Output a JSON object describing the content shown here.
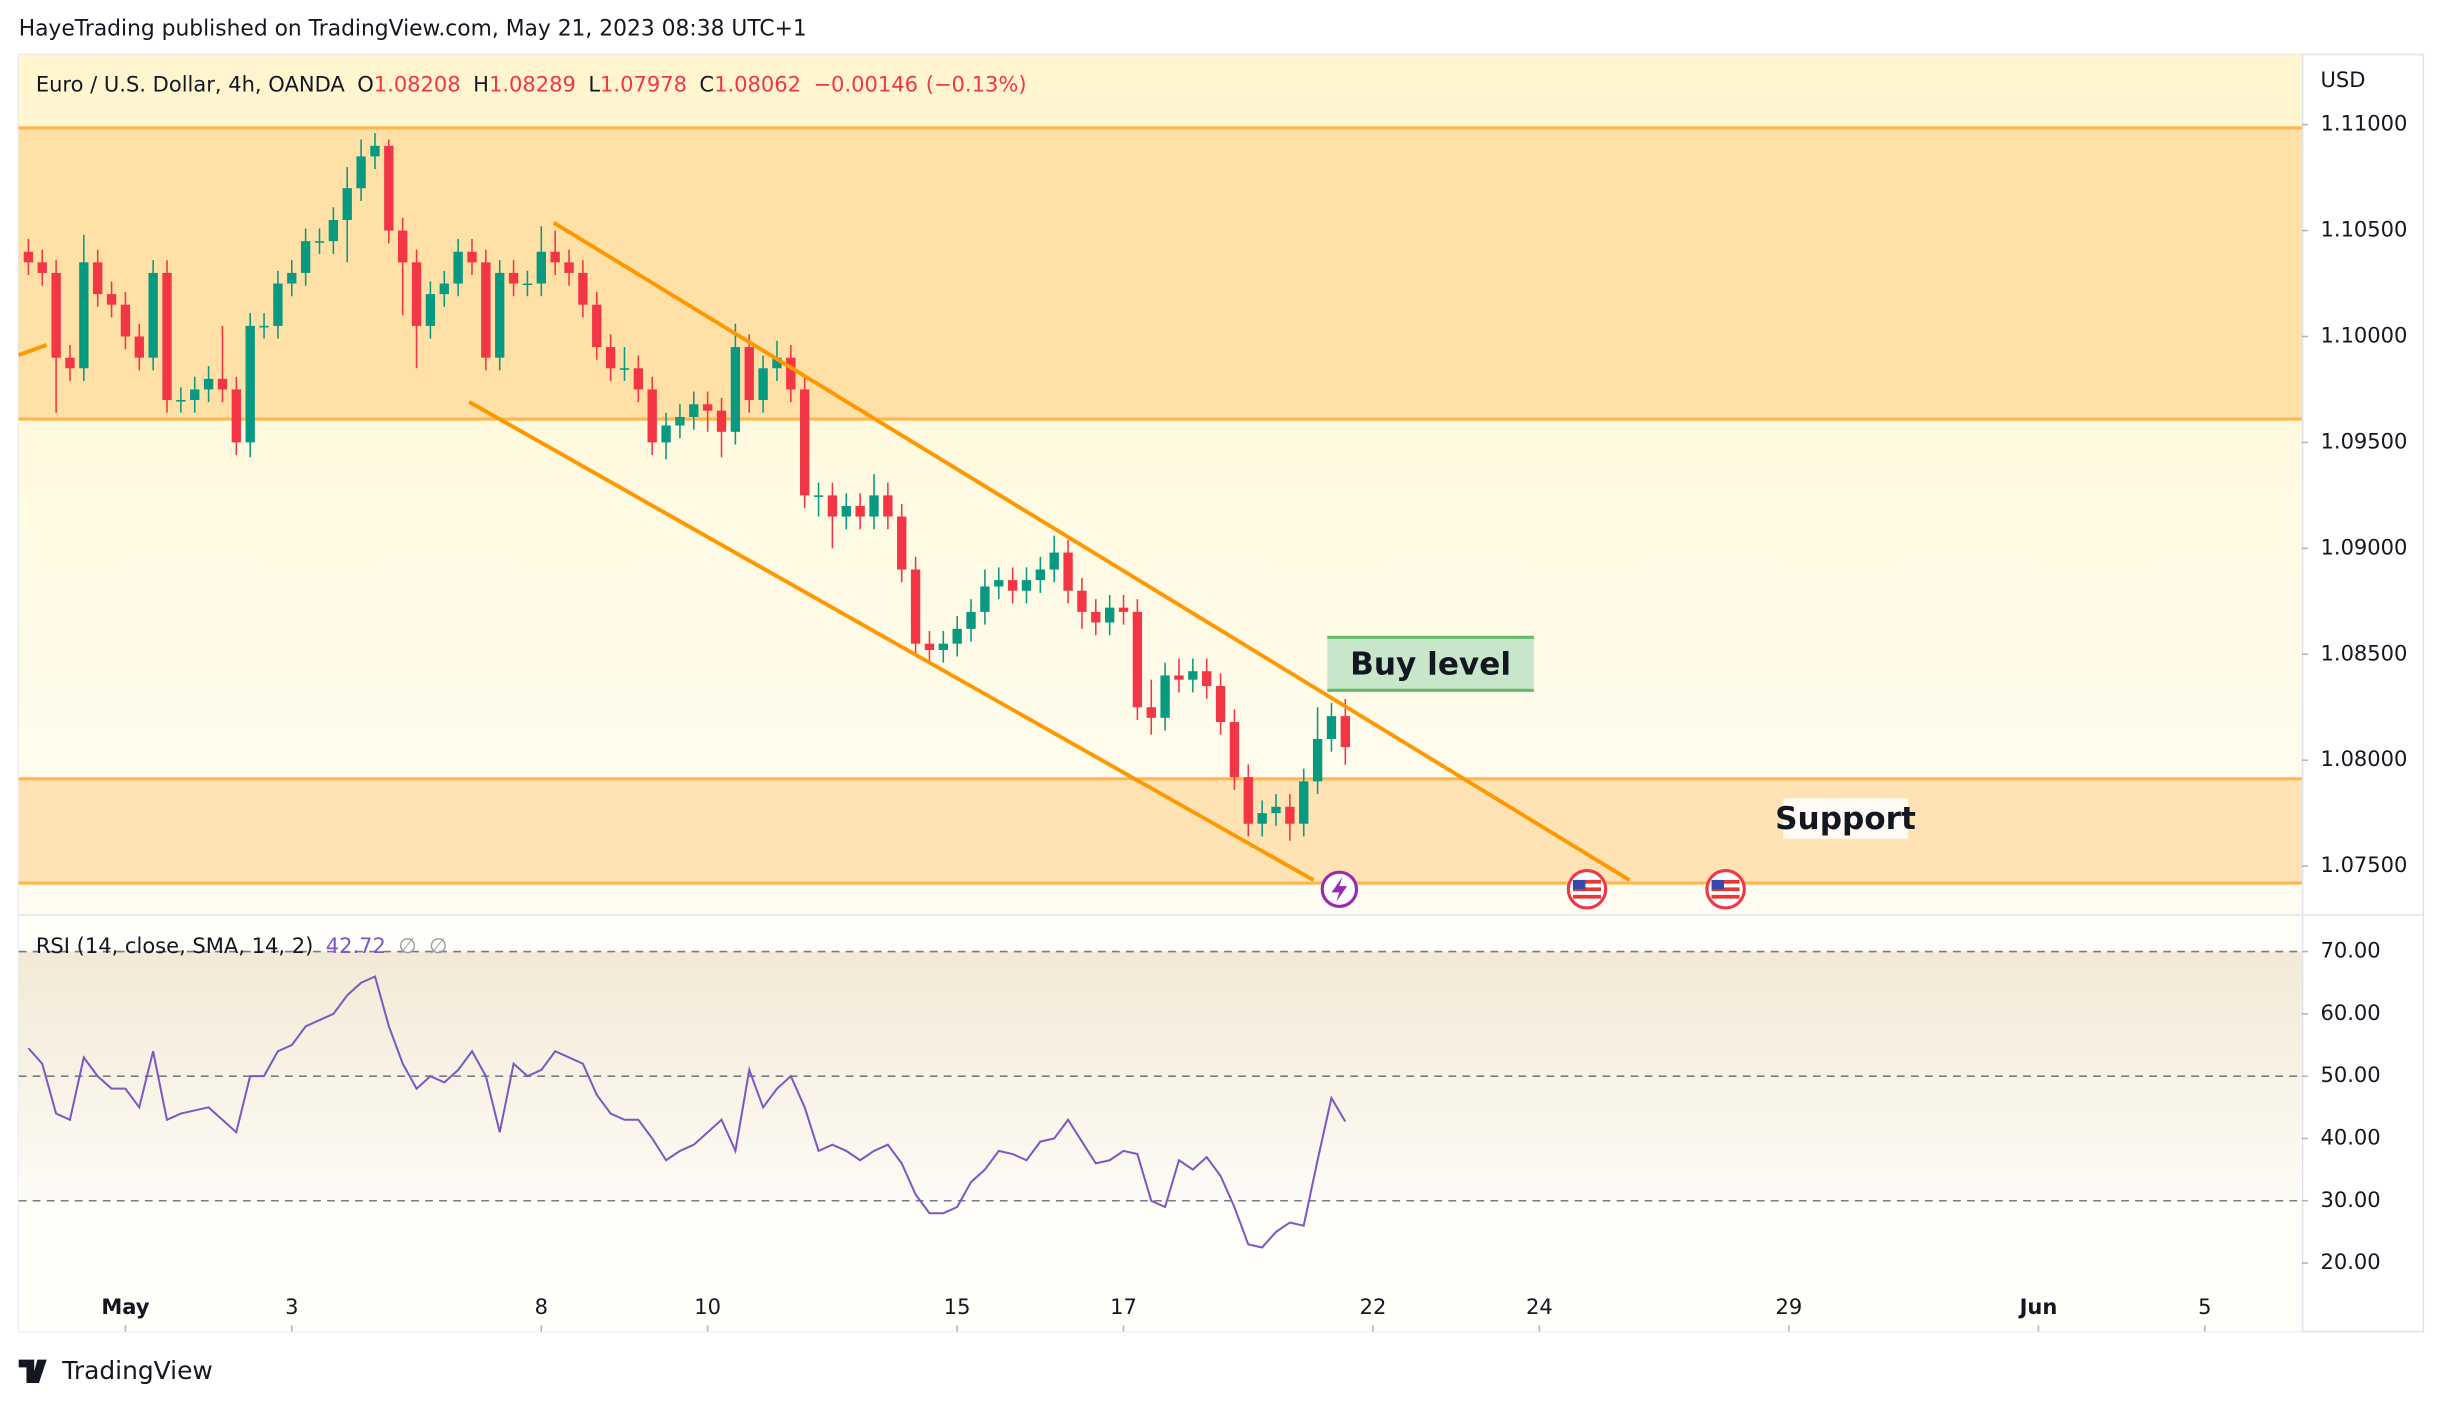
{
  "header": {
    "publisher": "HayeTrading published on TradingView.com, May 21, 2023 08:38 UTC+1",
    "footer": "TradingView"
  },
  "chart_data": [
    {
      "type": "candlestick",
      "title": "Euro / U.S. Dollar, 4h, OANDA",
      "ohlc_labels": [
        "O",
        "H",
        "L",
        "C"
      ],
      "change": {
        "value": -0.00146,
        "label": "−0.00146"
      },
      "change_pct": {
        "value": -0.13,
        "label": "(−0.13%)"
      },
      "currency": "USD",
      "up_color": "#089981",
      "down_color": "#f23645",
      "open": [
        1.104,
        1.1035,
        1.103,
        1.099,
        1.0985,
        1.1035,
        1.102,
        1.1015,
        1.1,
        1.099,
        1.103,
        1.097,
        1.097,
        1.0975,
        1.098,
        1.0975,
        1.095,
        1.1005,
        1.1005,
        1.1025,
        1.103,
        1.1045,
        1.1045,
        1.1055,
        1.107,
        1.1085,
        1.109,
        1.105,
        1.1035,
        1.1005,
        1.102,
        1.1025,
        1.104,
        1.1035,
        1.099,
        1.103,
        1.1025,
        1.1025,
        1.104,
        1.1035,
        1.103,
        1.1015,
        1.0995,
        1.0985,
        1.0985,
        1.0975,
        1.095,
        1.0958,
        1.0962,
        1.0968,
        1.0965,
        1.0955,
        1.0995,
        1.097,
        1.0985,
        1.099,
        1.0975,
        1.0925,
        1.0925,
        1.0915,
        1.092,
        1.0915,
        1.0925,
        1.0915,
        1.089,
        1.0855,
        1.0852,
        1.0855,
        1.0862,
        1.087,
        1.0882,
        1.0885,
        1.088,
        1.0885,
        1.089,
        1.0898,
        1.088,
        1.087,
        1.0865,
        1.0872,
        1.087,
        1.0825,
        1.082,
        1.084,
        1.0838,
        1.0842,
        1.0835,
        1.0818,
        1.0792,
        1.077,
        1.0775,
        1.0778,
        1.077,
        1.079,
        1.081,
        1.08208
      ],
      "high": [
        1.1046,
        1.1041,
        1.1036,
        1.0996,
        1.1048,
        1.1041,
        1.1026,
        1.1021,
        1.1006,
        1.1036,
        1.1036,
        1.0976,
        1.0981,
        1.0986,
        1.1005,
        1.0981,
        1.1011,
        1.1011,
        1.1031,
        1.1036,
        1.1051,
        1.1051,
        1.1061,
        1.108,
        1.1093,
        1.1096,
        1.1093,
        1.1056,
        1.1041,
        1.1026,
        1.1031,
        1.1046,
        1.1046,
        1.1041,
        1.1036,
        1.1036,
        1.1031,
        1.1052,
        1.105,
        1.1041,
        1.1036,
        1.1021,
        1.1001,
        1.0995,
        1.0991,
        1.0981,
        1.0964,
        1.0968,
        1.0974,
        1.0974,
        1.0971,
        1.1006,
        1.1001,
        1.0991,
        1.0998,
        1.0996,
        1.0981,
        1.0931,
        1.0931,
        1.0926,
        1.0926,
        1.0935,
        1.0931,
        1.0921,
        1.0896,
        1.0861,
        1.0861,
        1.0868,
        1.0876,
        1.089,
        1.0891,
        1.0891,
        1.0891,
        1.0896,
        1.0906,
        1.0904,
        1.0886,
        1.0876,
        1.0878,
        1.0878,
        1.0876,
        1.0838,
        1.0846,
        1.0848,
        1.0848,
        1.0848,
        1.0841,
        1.0824,
        1.0798,
        1.0781,
        1.0784,
        1.0784,
        1.0796,
        1.0825,
        1.0827,
        1.08289
      ],
      "low": [
        1.1029,
        1.1024,
        1.0964,
        1.0979,
        1.0979,
        1.1014,
        1.1009,
        1.0994,
        1.0984,
        1.0984,
        1.0964,
        1.0964,
        1.0964,
        1.0969,
        1.0969,
        1.0944,
        1.0943,
        1.0999,
        1.0999,
        1.1019,
        1.1024,
        1.1039,
        1.1039,
        1.1035,
        1.1064,
        1.1079,
        1.1044,
        1.101,
        1.0985,
        1.0999,
        1.1014,
        1.1019,
        1.1029,
        1.0984,
        1.0984,
        1.1019,
        1.1019,
        1.1019,
        1.1029,
        1.1024,
        1.1009,
        1.0989,
        1.0979,
        1.0979,
        1.0969,
        1.0944,
        1.0942,
        1.0952,
        1.0956,
        1.0955,
        1.0943,
        1.0949,
        1.0964,
        1.0964,
        1.0979,
        1.0969,
        1.0919,
        1.0915,
        1.09,
        1.0909,
        1.0909,
        1.0909,
        1.0909,
        1.0884,
        1.0849,
        1.0846,
        1.0846,
        1.0849,
        1.0856,
        1.0864,
        1.0876,
        1.0874,
        1.0874,
        1.0879,
        1.0884,
        1.0874,
        1.0862,
        1.0859,
        1.0859,
        1.0864,
        1.0819,
        1.0812,
        1.0814,
        1.0832,
        1.0832,
        1.0829,
        1.0812,
        1.0786,
        1.0764,
        1.0764,
        1.0769,
        1.0762,
        1.0764,
        1.0784,
        1.0804,
        1.07978
      ],
      "close": [
        1.1035,
        1.103,
        1.099,
        1.0985,
        1.1035,
        1.102,
        1.1015,
        1.1,
        1.099,
        1.103,
        1.097,
        1.097,
        1.0975,
        1.098,
        1.0975,
        1.095,
        1.1005,
        1.1005,
        1.1025,
        1.103,
        1.1045,
        1.1045,
        1.1055,
        1.107,
        1.1085,
        1.109,
        1.105,
        1.1035,
        1.1005,
        1.102,
        1.1025,
        1.104,
        1.1035,
        1.099,
        1.103,
        1.1025,
        1.1025,
        1.104,
        1.1035,
        1.103,
        1.1015,
        1.0995,
        1.0985,
        1.0985,
        1.0975,
        1.095,
        1.0958,
        1.0962,
        1.0968,
        1.0965,
        1.0955,
        1.0995,
        1.097,
        1.0985,
        1.099,
        1.0975,
        1.0925,
        1.0925,
        1.0915,
        1.092,
        1.0915,
        1.0925,
        1.0915,
        1.089,
        1.0855,
        1.0852,
        1.0855,
        1.0862,
        1.087,
        1.0882,
        1.0885,
        1.088,
        1.0885,
        1.089,
        1.0898,
        1.088,
        1.087,
        1.0865,
        1.0872,
        1.087,
        1.0825,
        1.082,
        1.084,
        1.0838,
        1.0842,
        1.0835,
        1.0818,
        1.0792,
        1.077,
        1.0775,
        1.0778,
        1.077,
        1.079,
        1.081,
        1.08208,
        1.08062
      ],
      "xlim": [
        -0.7,
        164
      ],
      "xticks": [
        {
          "value": 7,
          "label": "May"
        },
        {
          "value": 19,
          "label": "3"
        },
        {
          "value": 37,
          "label": "8"
        },
        {
          "value": 49,
          "label": "10"
        },
        {
          "value": 67,
          "label": "15"
        },
        {
          "value": 79,
          "label": "17"
        },
        {
          "value": 97,
          "label": "22"
        },
        {
          "value": 109,
          "label": "24"
        },
        {
          "value": 127,
          "label": "29"
        },
        {
          "value": 145,
          "label": "Jun"
        },
        {
          "value": 157,
          "label": "5"
        }
      ],
      "ylim": [
        1.07273,
        1.11331
      ],
      "yticks": [
        {
          "value": 1.075,
          "label": "1.07500"
        },
        {
          "value": 1.08,
          "label": "1.08000"
        },
        {
          "value": 1.085,
          "label": "1.08500"
        },
        {
          "value": 1.09,
          "label": "1.09000"
        },
        {
          "value": 1.095,
          "label": "1.09500"
        },
        {
          "value": 1.1,
          "label": "1.10000"
        },
        {
          "value": 1.105,
          "label": "1.10500"
        },
        {
          "value": 1.11,
          "label": "1.11000"
        }
      ],
      "zones": [
        {
          "low": 1.0961,
          "high": 1.10985,
          "color": "#ffe0a6"
        },
        {
          "low": 1.0742,
          "high": 1.07912,
          "color": "#ffe3b5",
          "label": "Support"
        }
      ],
      "lines": [
        {
          "x": [
            37.9,
            115.5
          ],
          "y": [
            1.10537,
            1.07434
          ],
          "color": "#ff9800"
        },
        {
          "x": [
            31.8,
            92.7
          ],
          "y": [
            1.09691,
            1.07434
          ],
          "color": "#ff9800"
        },
        {
          "x": [
            -0.7,
            1.3
          ],
          "y": [
            1.09912,
            1.0996
          ],
          "color": "#ff9800"
        }
      ],
      "boxes": [
        {
          "text": "Buy level",
          "x": [
            93.7,
            108.6
          ],
          "low": 1.0833,
          "high": 1.0858,
          "color": "#c8e6c9"
        }
      ]
    },
    {
      "type": "line",
      "title": "RSI (14, close, SMA, 14, 2)",
      "null_labels": [
        "∅",
        "∅"
      ],
      "color": "#7e57c2",
      "values": [
        54.5,
        52,
        44,
        43,
        53,
        50,
        48,
        48,
        45,
        54,
        43,
        44,
        44.5,
        45,
        43,
        41,
        50,
        50,
        54,
        55,
        58,
        59,
        60,
        63,
        65,
        66,
        58,
        52,
        48,
        50,
        49,
        51,
        54,
        50,
        41,
        52,
        50,
        51,
        54,
        53,
        52,
        47,
        44,
        43,
        43,
        40,
        36.5,
        38,
        39,
        41,
        43,
        38,
        51,
        45,
        48,
        50,
        45,
        38,
        39,
        38,
        36.5,
        38,
        39,
        36,
        31,
        28,
        28,
        29,
        33,
        35,
        38,
        37.5,
        36.5,
        39.5,
        40,
        43,
        39.5,
        36,
        36.5,
        38,
        37.5,
        30,
        29,
        36.5,
        35,
        37,
        34,
        29,
        23,
        22.5,
        25,
        26.5,
        26,
        36.5,
        46.5,
        42.72
      ],
      "ylim": [
        9,
        76
      ],
      "yticks": [
        {
          "value": 20,
          "label": "20.00"
        },
        {
          "value": 30,
          "label": "30.00"
        },
        {
          "value": 40,
          "label": "40.00"
        },
        {
          "value": 50,
          "label": "50.00"
        },
        {
          "value": 60,
          "label": "60.00"
        },
        {
          "value": 70,
          "label": "70.00"
        }
      ],
      "levels": [
        70,
        50,
        30
      ]
    }
  ]
}
